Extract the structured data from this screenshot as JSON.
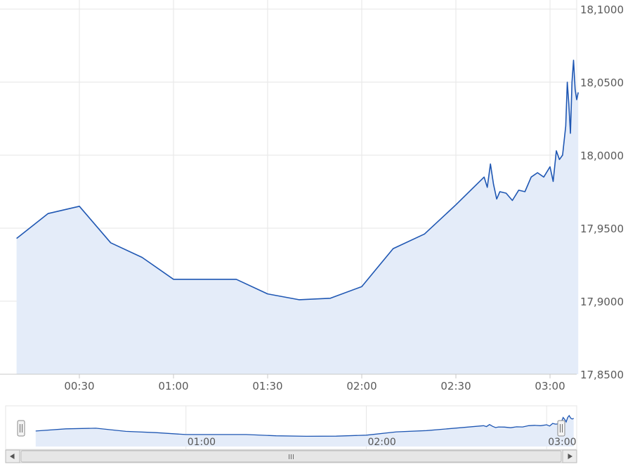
{
  "chart_data": {
    "type": "line",
    "style": "area",
    "colors": {
      "line": "#1f57b3",
      "fill": "#e4ecf9",
      "grid": "#e6e6e6"
    },
    "grid": true,
    "x_ticks": [
      "00:30",
      "01:00",
      "01:30",
      "02:00",
      "02:30",
      "03:00"
    ],
    "y_ticks": [
      "18,1000",
      "18,0500",
      "18,0000",
      "17,9500",
      "17,9000",
      "17,8500"
    ],
    "ylim": [
      17.85,
      18.1
    ],
    "y_axis_position": "right",
    "series": [
      {
        "values": [
          [
            "00:10",
            17.943
          ],
          [
            "00:20",
            17.96
          ],
          [
            "00:30",
            17.965
          ],
          [
            "00:40",
            17.94
          ],
          [
            "00:50",
            17.93
          ],
          [
            "01:00",
            17.915
          ],
          [
            "01:10",
            17.915
          ],
          [
            "01:20",
            17.915
          ],
          [
            "01:30",
            17.905
          ],
          [
            "01:40",
            17.901
          ],
          [
            "01:50",
            17.902
          ],
          [
            "02:00",
            17.91
          ],
          [
            "02:10",
            17.936
          ],
          [
            "02:20",
            17.946
          ],
          [
            "02:30",
            17.966
          ],
          [
            "02:39",
            17.985
          ],
          [
            "02:40",
            17.978
          ],
          [
            "02:41",
            17.994
          ],
          [
            "02:42",
            17.98
          ],
          [
            "02:43",
            17.97
          ],
          [
            "02:44",
            17.975
          ],
          [
            "02:46",
            17.974
          ],
          [
            "02:48",
            17.969
          ],
          [
            "02:50",
            17.976
          ],
          [
            "02:52",
            17.975
          ],
          [
            "02:54",
            17.985
          ],
          [
            "02:56",
            17.988
          ],
          [
            "02:58",
            17.985
          ],
          [
            "03:00",
            17.992
          ],
          [
            "03:01",
            17.982
          ],
          [
            "03:02",
            18.003
          ],
          [
            "03:03",
            17.997
          ],
          [
            "03:04",
            18.0
          ],
          [
            "03:05",
            18.02
          ],
          [
            "03:05:30",
            18.05
          ],
          [
            "03:06",
            18.035
          ],
          [
            "03:06:30",
            18.015
          ],
          [
            "03:07",
            18.05
          ],
          [
            "03:07:30",
            18.065
          ],
          [
            "03:08",
            18.045
          ],
          [
            "03:08:30",
            18.038
          ],
          [
            "03:09",
            18.043
          ]
        ]
      }
    ],
    "navigator": {
      "x_ticks": [
        "01:00",
        "02:00",
        "03:00"
      ],
      "scrollbar_grip": "III"
    }
  }
}
